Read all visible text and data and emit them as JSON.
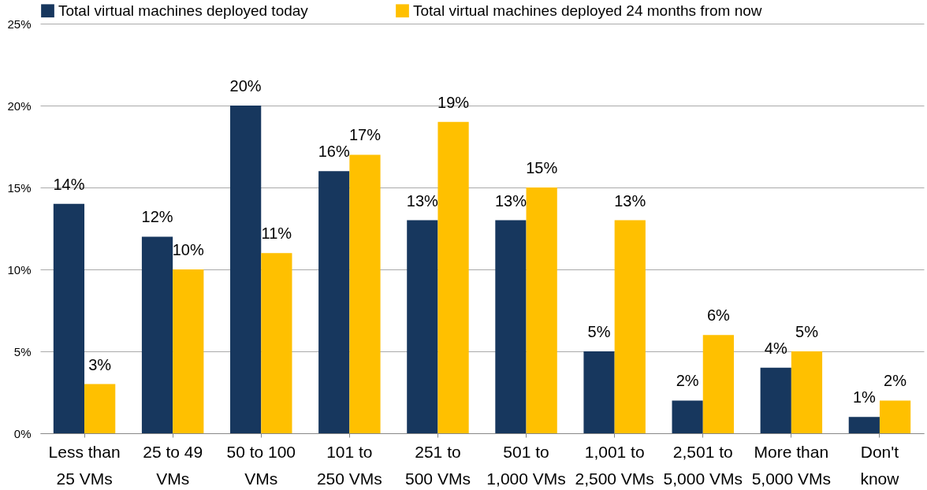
{
  "chart_data": {
    "type": "bar",
    "categories": [
      "Less than 25 VMs",
      "25 to 49 VMs",
      "50 to 100 VMs",
      "101 to 250 VMs",
      "251 to 500 VMs",
      "501 to 1,000 VMs",
      "1,001 to 2,500 VMs",
      "2,501 to 5,000 VMs",
      "More than 5,000 VMs",
      "Don't know"
    ],
    "series": [
      {
        "name": "Total virtual machines deployed today",
        "color": "#17375e",
        "values": [
          14,
          12,
          20,
          16,
          13,
          13,
          5,
          2,
          4,
          1
        ],
        "value_labels": [
          "14%",
          "12%",
          "20%",
          "16%",
          "13%",
          "13%",
          "5%",
          "2%",
          "4%",
          "1%"
        ]
      },
      {
        "name": "Total virtual machines deployed 24 months from now",
        "color": "#ffc000",
        "values": [
          3,
          10,
          11,
          17,
          19,
          15,
          13,
          6,
          5,
          2
        ],
        "value_labels": [
          "3%",
          "10%",
          "11%",
          "17%",
          "19%",
          "15%",
          "13%",
          "6%",
          "5%",
          "2%"
        ]
      }
    ],
    "ylim": [
      0,
      25
    ],
    "yticks": [
      {
        "value": 0,
        "label": "0%"
      },
      {
        "value": 5,
        "label": "5%"
      },
      {
        "value": 10,
        "label": "10%"
      },
      {
        "value": 15,
        "label": "15%"
      },
      {
        "value": 20,
        "label": "20%"
      },
      {
        "value": 25,
        "label": "25%"
      }
    ],
    "grid": "y",
    "legend": "top left"
  }
}
